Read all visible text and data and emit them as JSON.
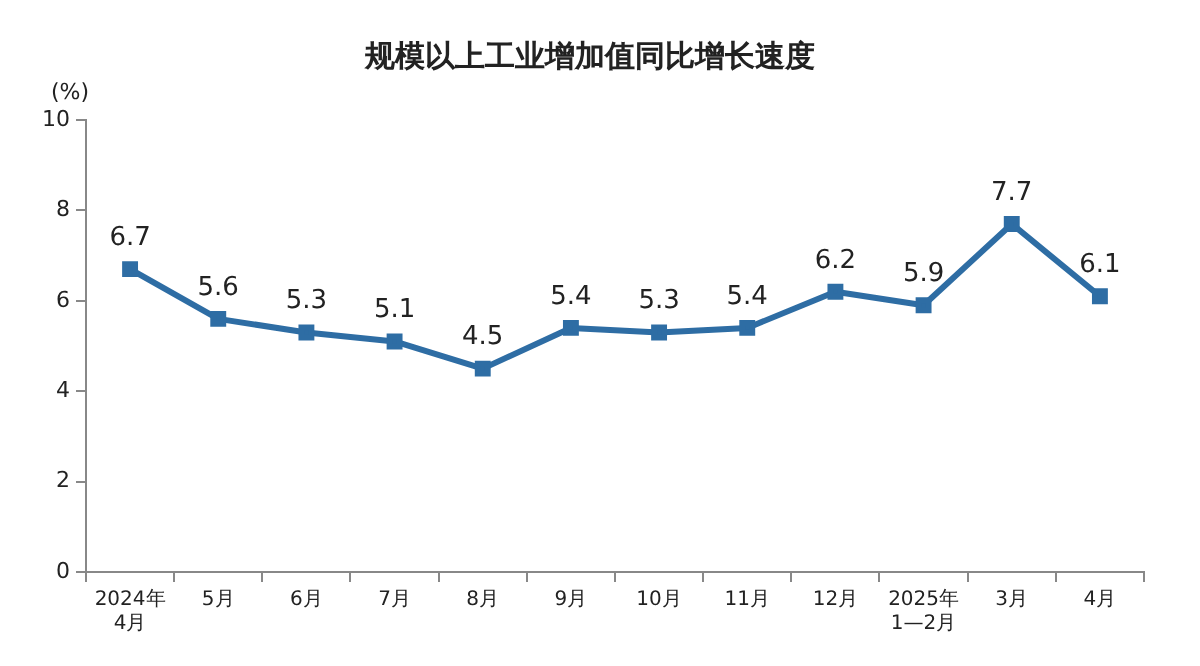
{
  "chart_data": {
    "type": "line",
    "title": "规模以上工业增加值同比增长速度",
    "ylabel": "(%)",
    "categories": [
      "2024年\n4月",
      "5月",
      "6月",
      "7月",
      "8月",
      "9月",
      "10月",
      "11月",
      "12月",
      "2025年\n1—2月",
      "3月",
      "4月"
    ],
    "series": [
      {
        "color": "#2e6da4",
        "values": [
          6.7,
          5.6,
          5.3,
          5.1,
          4.5,
          5.4,
          5.3,
          5.4,
          6.2,
          5.9,
          7.7,
          6.1
        ]
      }
    ],
    "ylim": [
      0,
      10
    ],
    "yticks": [
      0,
      2,
      4,
      6,
      8,
      10
    ],
    "grid": false,
    "legend": false,
    "marker": "square",
    "line_style": "solid",
    "data_labels": true
  }
}
